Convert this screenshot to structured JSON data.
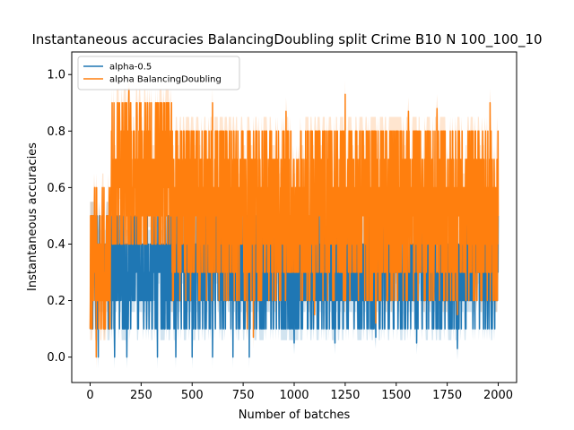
{
  "chart_data": {
    "type": "line",
    "title": "Instantaneous accuracies BalancingDoubling split Crime B10 N 100_100_10",
    "xlabel": "Number of batches",
    "ylabel": "Instantaneous accuracies",
    "xlim": [
      -90,
      2090
    ],
    "ylim": [
      -0.09,
      1.08
    ],
    "xticks": [
      0,
      250,
      500,
      750,
      1000,
      1250,
      1500,
      1750,
      2000
    ],
    "yticks": [
      0.0,
      0.2,
      0.4,
      0.6,
      0.8,
      1.0
    ],
    "xtick_labels": [
      "0",
      "250",
      "500",
      "750",
      "1000",
      "1250",
      "1500",
      "1750",
      "2000"
    ],
    "ytick_labels": [
      "0.0",
      "0.2",
      "0.4",
      "0.6",
      "0.8",
      "1.0"
    ],
    "grid": false,
    "legend": "top-left",
    "x_range": [
      0,
      2000
    ],
    "series": [
      {
        "name": "alpha-0.5",
        "color": "#1f77b4",
        "bands": [
          {
            "x": [
              0,
              800
            ],
            "range": [
              0.1,
              0.5
            ]
          },
          {
            "x": [
              800,
              2000
            ],
            "range": [
              0.1,
              0.5
            ]
          }
        ],
        "peaks": [
          [
            5,
            0.5
          ],
          [
            160,
            0.5
          ],
          [
            230,
            0.6
          ],
          [
            280,
            0.6
          ],
          [
            400,
            0.6
          ],
          [
            650,
            0.5
          ],
          [
            1100,
            0.55
          ],
          [
            1250,
            0.6
          ],
          [
            1500,
            0.6
          ],
          [
            1750,
            0.55
          ],
          [
            2000,
            0.5
          ]
        ],
        "dips": [
          [
            40,
            0.0
          ],
          [
            120,
            0.0
          ],
          [
            180,
            0.0
          ],
          [
            330,
            0.0
          ],
          [
            420,
            0.0
          ],
          [
            500,
            0.0
          ],
          [
            600,
            0.0
          ],
          [
            700,
            0.0
          ],
          [
            780,
            0.0
          ],
          [
            1000,
            0.05
          ],
          [
            1200,
            0.05
          ],
          [
            1400,
            0.07
          ],
          [
            1600,
            0.05
          ],
          [
            1800,
            0.03
          ]
        ]
      },
      {
        "name": "alpha BalancingDoubling",
        "color": "#ff7f0e",
        "bands": [
          {
            "x": [
              0,
              100
            ],
            "range": [
              0.1,
              0.6
            ]
          },
          {
            "x": [
              100,
              400
            ],
            "range": [
              0.35,
              0.9
            ]
          },
          {
            "x": [
              400,
              800
            ],
            "range": [
              0.2,
              0.85
            ]
          },
          {
            "x": [
              800,
              2000
            ],
            "range": [
              0.2,
              0.85
            ]
          }
        ],
        "peaks": [
          [
            190,
            0.95
          ],
          [
            230,
            0.9
          ],
          [
            300,
            0.9
          ],
          [
            600,
            0.9
          ],
          [
            960,
            0.87
          ],
          [
            1250,
            0.93
          ],
          [
            1560,
            0.87
          ],
          [
            1700,
            0.88
          ],
          [
            1960,
            0.9
          ]
        ],
        "dips": [
          [
            5,
            0.1
          ],
          [
            30,
            0.0
          ],
          [
            770,
            0.1
          ],
          [
            800,
            0.07
          ],
          [
            1100,
            0.15
          ],
          [
            1400,
            0.12
          ],
          [
            1800,
            0.15
          ]
        ]
      }
    ]
  }
}
